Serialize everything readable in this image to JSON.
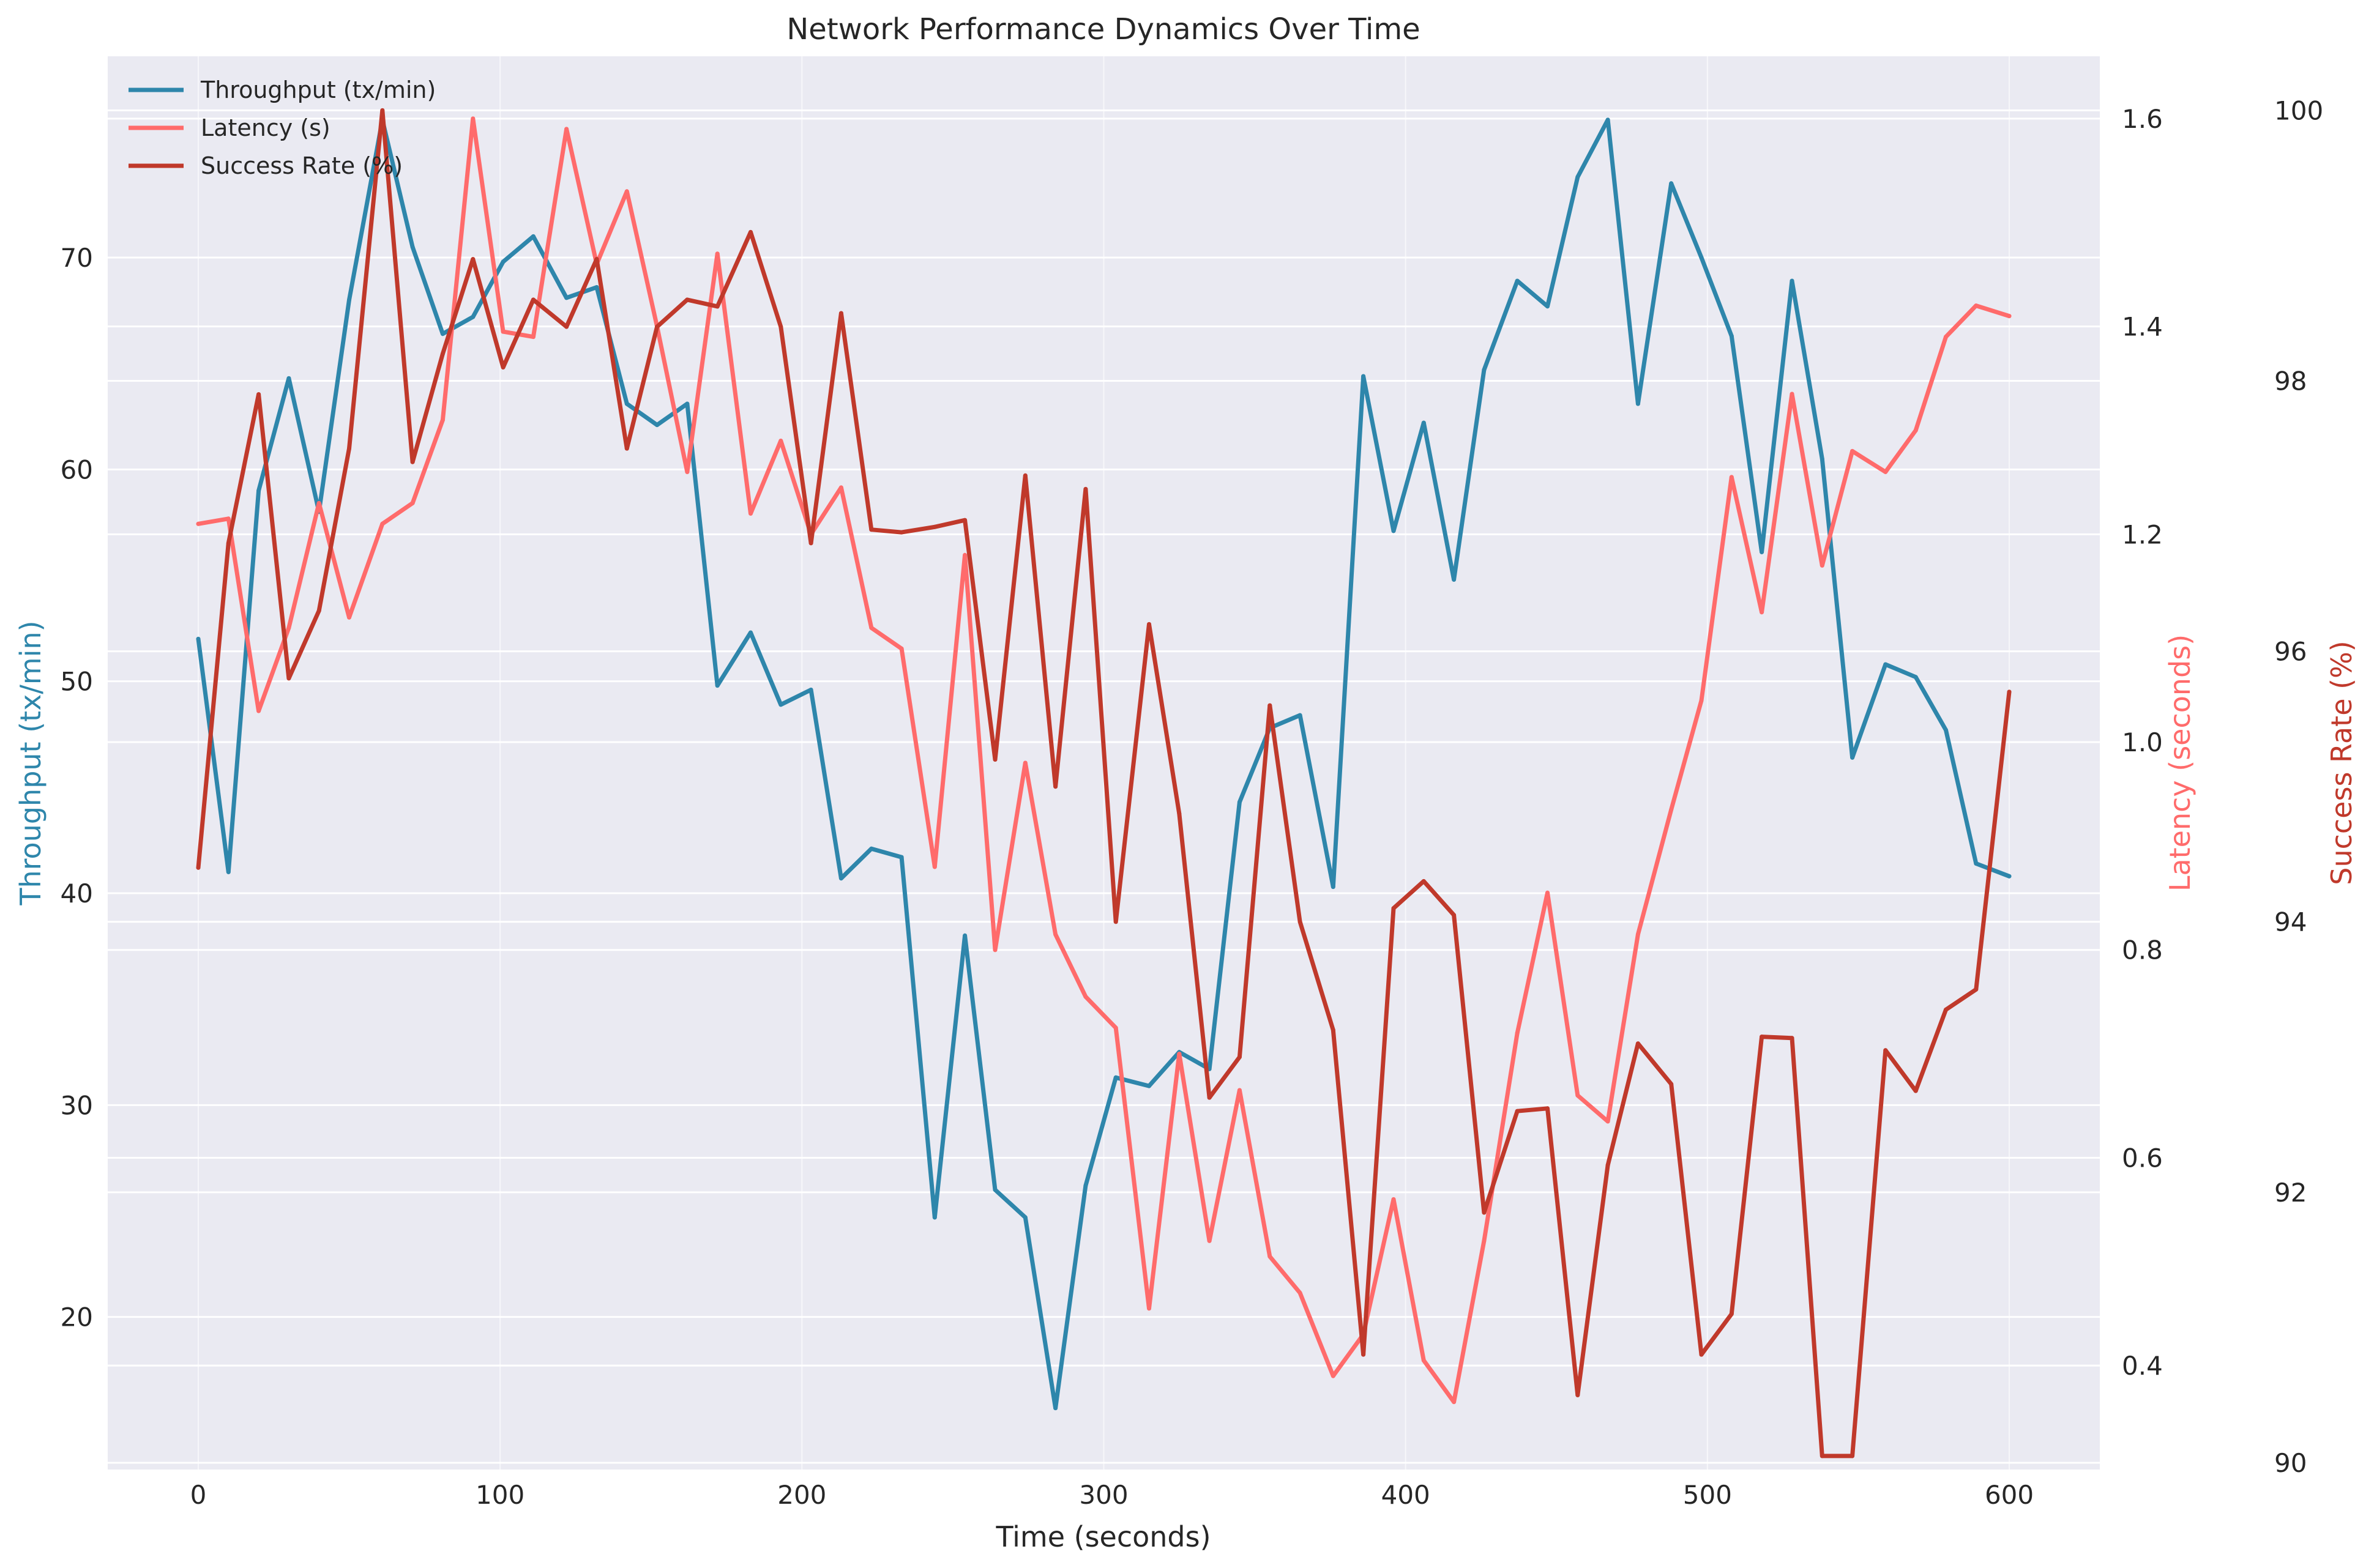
{
  "chart_data": {
    "type": "line",
    "title": "Network Performance Dynamics Over Time",
    "xlabel": "Time (seconds)",
    "xlim": [
      -30,
      630
    ],
    "xticks": [
      0,
      100,
      200,
      300,
      400,
      500,
      600
    ],
    "grid": true,
    "legend_position": "top-left",
    "axes": {
      "left": {
        "label": "Throughput (tx/min)",
        "color": "#2e86ab",
        "ylim": [
          12.8,
          79.5
        ],
        "ticks": [
          20,
          30,
          40,
          50,
          60,
          70
        ]
      },
      "right1": {
        "label": "Latency (seconds)",
        "color": "#ff6b6b",
        "ylim": [
          0.3,
          1.66
        ],
        "ticks": [
          "0.4",
          "0.6",
          "0.8",
          "1.0",
          "1.2",
          "1.4",
          "1.6"
        ]
      },
      "right2": {
        "label": "Success Rate (%)",
        "color": "#c0392b",
        "ylim": [
          89.95,
          100.4
        ],
        "ticks": [
          90,
          92,
          94,
          96,
          98,
          100
        ]
      }
    },
    "x": [
      0,
      10,
      20,
      30,
      40,
      50,
      61,
      71,
      81,
      91,
      101,
      111,
      122,
      132,
      142,
      152,
      162,
      172,
      183,
      193,
      203,
      213,
      223,
      233,
      244,
      254,
      264,
      274,
      284,
      294,
      304,
      315,
      325,
      335,
      345,
      355,
      365,
      376,
      386,
      396,
      406,
      416,
      426,
      437,
      447,
      457,
      467,
      477,
      488,
      498,
      508,
      518,
      528,
      538,
      548,
      559,
      569,
      579,
      589,
      600
    ],
    "series": [
      {
        "name": "Throughput (tx/min)",
        "axis": "left",
        "color": "#2e86ab",
        "values": [
          52.0,
          41.0,
          59.0,
          64.3,
          58.0,
          68.0,
          76.5,
          70.5,
          66.4,
          67.2,
          69.8,
          71.0,
          68.1,
          68.6,
          63.1,
          62.1,
          63.1,
          49.8,
          52.3,
          48.9,
          49.6,
          40.7,
          42.1,
          41.7,
          24.7,
          38.0,
          26.0,
          24.7,
          15.7,
          26.2,
          31.3,
          30.9,
          32.5,
          31.7,
          44.3,
          47.8,
          48.4,
          40.3,
          64.4,
          57.1,
          62.2,
          54.8,
          64.7,
          68.9,
          67.7,
          73.8,
          76.5,
          63.1,
          73.5,
          70.0,
          66.3,
          56.1,
          68.9,
          60.5,
          46.4,
          50.8,
          50.2,
          47.7,
          41.4,
          40.8
        ]
      },
      {
        "name": "Latency (s)",
        "axis": "right1",
        "color": "#ff6b6b",
        "values": [
          1.21,
          1.215,
          1.03,
          1.11,
          1.23,
          1.12,
          1.21,
          1.23,
          1.31,
          1.6,
          1.395,
          1.39,
          1.59,
          1.46,
          1.53,
          1.4,
          1.26,
          1.47,
          1.22,
          1.29,
          1.2,
          1.245,
          1.11,
          1.09,
          0.88,
          1.18,
          0.8,
          0.98,
          0.815,
          0.755,
          0.725,
          0.455,
          0.7,
          0.52,
          0.665,
          0.505,
          0.47,
          0.39,
          0.43,
          0.56,
          0.405,
          0.365,
          0.52,
          0.72,
          0.855,
          0.66,
          0.635,
          0.815,
          0.935,
          1.04,
          1.255,
          1.125,
          1.335,
          1.17,
          1.28,
          1.26,
          1.3,
          1.39,
          1.42,
          1.41
        ]
      },
      {
        "name": "Success Rate (%)",
        "axis": "right2",
        "color": "#c0392b",
        "values": [
          94.4,
          96.8,
          97.9,
          95.8,
          96.3,
          97.5,
          100.0,
          97.4,
          98.2,
          98.9,
          98.1,
          98.6,
          98.4,
          98.9,
          97.5,
          98.4,
          98.6,
          98.55,
          99.1,
          98.4,
          96.8,
          98.5,
          96.9,
          96.88,
          96.92,
          96.97,
          95.2,
          97.3,
          95.0,
          97.2,
          94.0,
          96.2,
          94.8,
          92.7,
          93.0,
          95.6,
          94.0,
          93.2,
          90.8,
          94.1,
          94.3,
          94.05,
          91.85,
          92.6,
          92.62,
          90.5,
          92.2,
          93.1,
          92.8,
          90.8,
          91.1,
          93.15,
          93.14,
          90.05,
          90.05,
          93.05,
          92.75,
          93.35,
          93.5,
          95.7
        ]
      }
    ],
    "legend": [
      "Throughput (tx/min)",
      "Latency (s)",
      "Success Rate (%)"
    ]
  }
}
